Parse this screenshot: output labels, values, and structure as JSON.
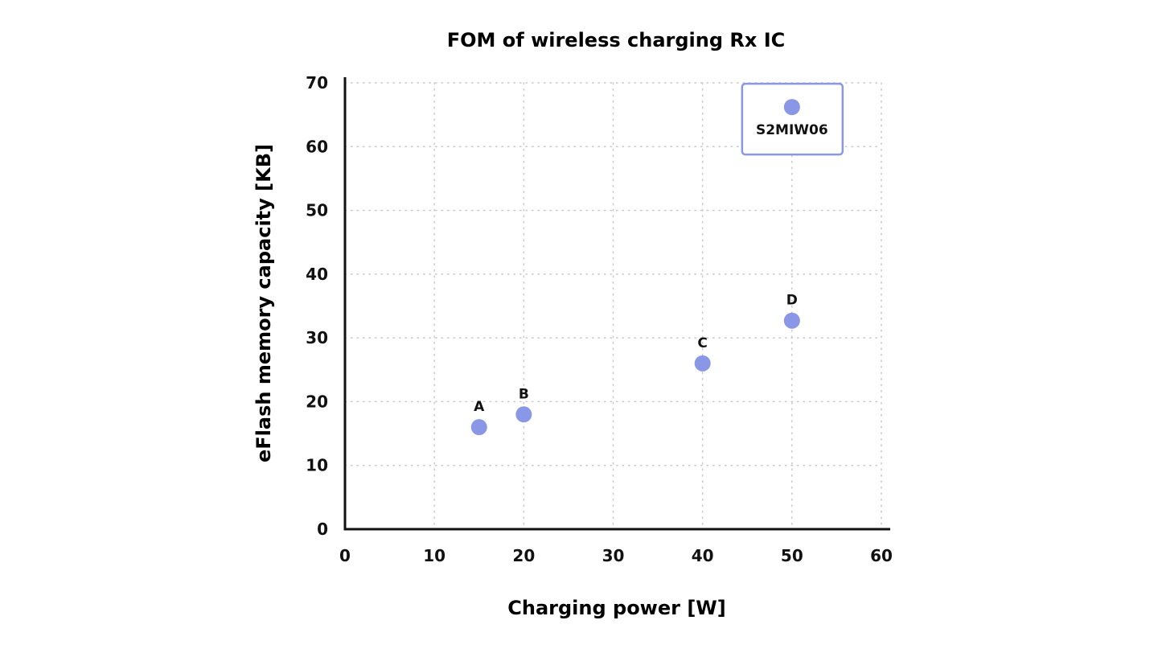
{
  "chart_data": {
    "type": "scatter",
    "title": "FOM of wireless charging Rx IC",
    "xlabel": "Charging power [W]",
    "ylabel": "eFlash memory capacity [KB]",
    "xlim": [
      0,
      60
    ],
    "ylim": [
      0,
      70
    ],
    "x_ticks": [
      0,
      10,
      20,
      30,
      40,
      50,
      60
    ],
    "y_ticks": [
      0,
      10,
      20,
      30,
      40,
      50,
      60,
      70
    ],
    "grid": true,
    "marker_color": "#8a96e6",
    "highlight_color": "#8a96e6",
    "points": [
      {
        "label": "A",
        "x": 15,
        "y": 16
      },
      {
        "label": "B",
        "x": 20,
        "y": 18
      },
      {
        "label": "C",
        "x": 40,
        "y": 26
      },
      {
        "label": "D",
        "x": 50,
        "y": 32.7
      },
      {
        "label": "S2MIW06",
        "x": 50,
        "y": 66.2,
        "highlight": true
      }
    ]
  }
}
